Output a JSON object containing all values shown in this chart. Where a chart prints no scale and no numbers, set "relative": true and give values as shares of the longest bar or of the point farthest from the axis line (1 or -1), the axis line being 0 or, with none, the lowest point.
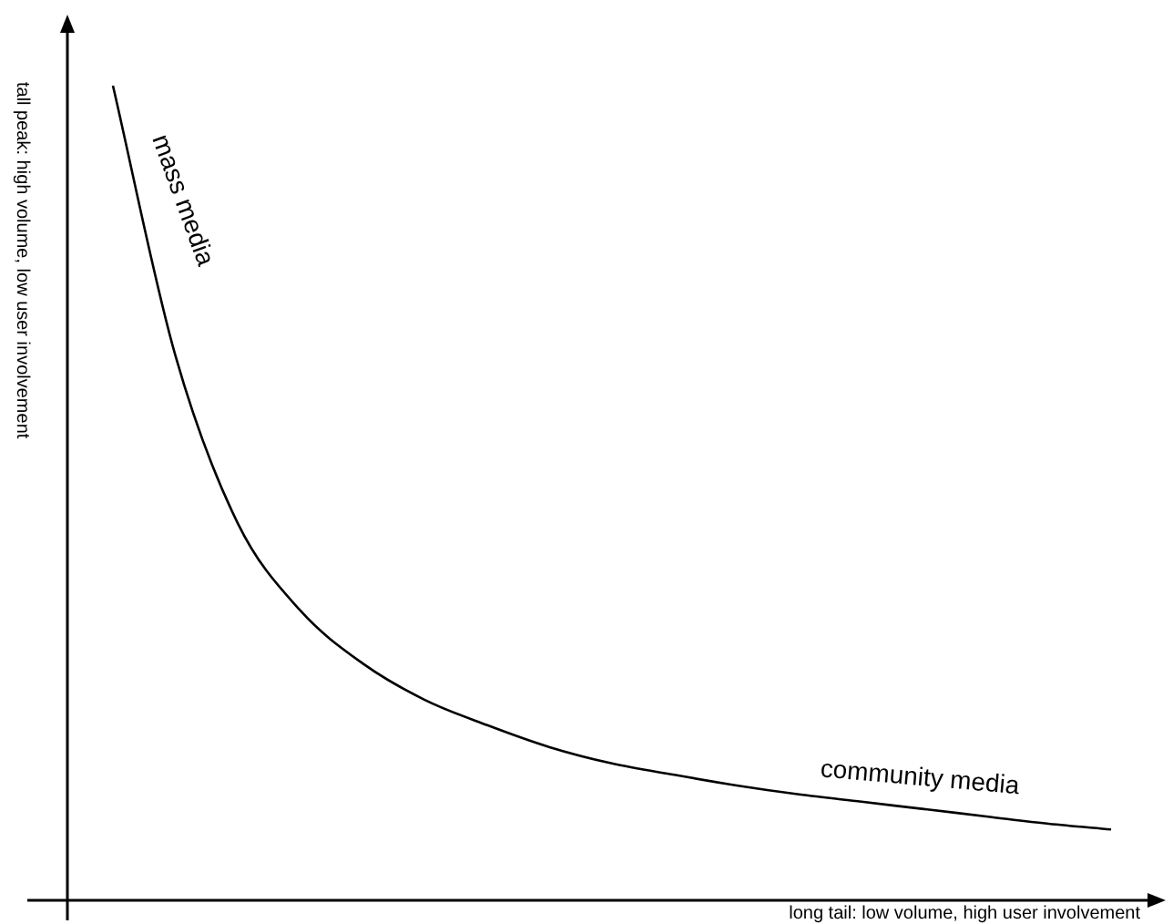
{
  "chart_data": {
    "type": "line",
    "xlabel": "long tail: low volume, high user involvement",
    "ylabel": "tall peak: high volume, low user involvement",
    "categories": [
      null,
      null,
      null,
      null,
      null,
      null,
      null,
      null,
      null,
      null,
      null,
      null,
      null,
      null,
      null,
      null,
      null
    ],
    "values": [
      1,
      0.669,
      0.463,
      0.356,
      0.291,
      0.246,
      0.215,
      0.188,
      0.168,
      0.154,
      0.141,
      0.13,
      0.121,
      0.112,
      0.103,
      0.094,
      0.087
    ],
    "color": "#000000",
    "relative": true,
    "marker": "none",
    "annotations": [
      "mass media",
      "community media"
    ]
  }
}
